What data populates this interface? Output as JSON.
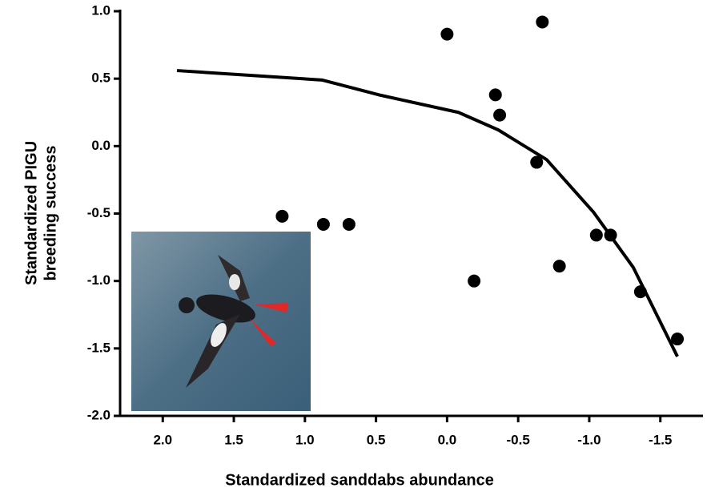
{
  "chart_data": {
    "type": "scatter",
    "xlabel": "Standardized sanddabs abundance",
    "ylabel": [
      "Standardized PIGU",
      "breeding success"
    ],
    "xlim": [
      2.3,
      -1.8
    ],
    "ylim": [
      -2,
      1
    ],
    "xticks": [
      {
        "value": 2,
        "label": "2.0"
      },
      1.5,
      {
        "value": 1,
        "label": "1.0"
      },
      0.5,
      {
        "value": 0,
        "label": "0.0"
      },
      -0.5,
      {
        "value": -1,
        "label": "-1.0"
      },
      -1.5
    ],
    "yticks": [
      {
        "value": -2,
        "label": "-2.0"
      },
      -1.5,
      {
        "value": -1,
        "label": "-1.0"
      },
      -0.5,
      {
        "value": 0,
        "label": "0.0"
      },
      0.5,
      {
        "value": 1,
        "label": "1.0"
      }
    ],
    "points": {
      "color": "#000000",
      "x": [
        0.0,
        -0.67,
        -0.34,
        -0.37,
        -0.63,
        1.16,
        0.87,
        0.69,
        -0.19,
        -0.79,
        -1.05,
        -1.15,
        -1.36,
        -1.62
      ],
      "y": [
        0.83,
        0.92,
        0.38,
        0.23,
        -0.12,
        -0.52,
        -0.58,
        -0.58,
        -1.0,
        -0.89,
        -0.66,
        -0.66,
        -1.08,
        -1.43
      ]
    },
    "curve": {
      "color": "#000000",
      "x": [
        1.9,
        0.88,
        0.48,
        -0.08,
        -0.36,
        -0.7,
        -1.03,
        -1.31,
        -1.62
      ],
      "y": [
        0.56,
        0.49,
        0.38,
        0.25,
        0.12,
        -0.1,
        -0.49,
        -0.9,
        -1.56
      ]
    }
  }
}
